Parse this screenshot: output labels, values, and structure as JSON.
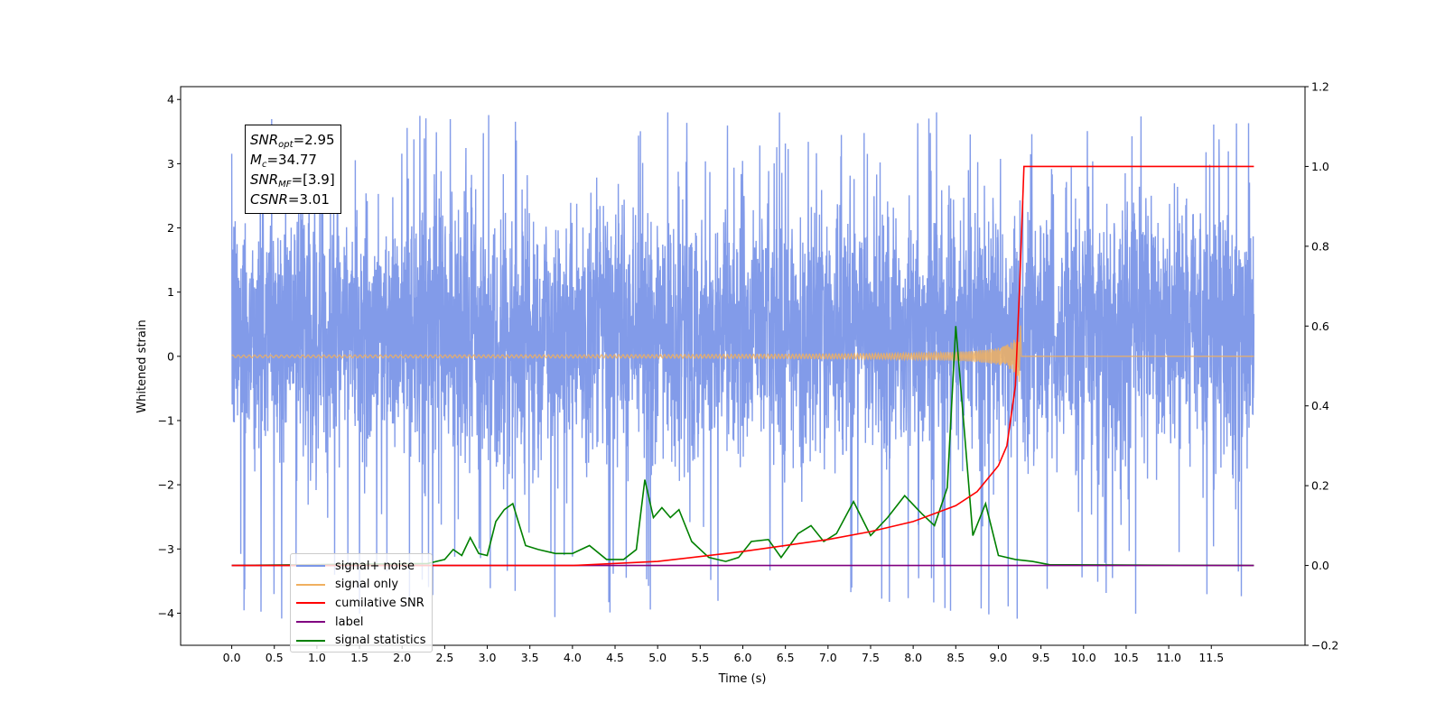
{
  "chart_data": {
    "type": "line",
    "xlabel": "Time (s)",
    "ylabel": "Whitened strain",
    "xlim": [
      -0.6,
      12.6
    ],
    "ylim_left": [
      -4.5,
      4.2
    ],
    "ylim_right": [
      -0.2,
      1.2
    ],
    "x_ticks": [
      "0.0",
      "0.5",
      "1.0",
      "1.5",
      "2.0",
      "2.5",
      "3.0",
      "3.5",
      "4.0",
      "4.5",
      "5.0",
      "5.5",
      "6.0",
      "6.5",
      "7.0",
      "7.5",
      "8.0",
      "8.5",
      "9.0",
      "9.5",
      "10.0",
      "10.5",
      "11.0",
      "11.5"
    ],
    "y_ticks_left": [
      "−4",
      "−3",
      "−2",
      "−1",
      "0",
      "1",
      "2",
      "3",
      "4"
    ],
    "y_ticks_right": [
      "−0.2",
      "0.0",
      "0.2",
      "0.4",
      "0.6",
      "0.8",
      "1.0",
      "1.2"
    ],
    "annotation": {
      "snr_opt": "=2.95",
      "mc": "=34.77",
      "snr_mf": "=[3.9]",
      "csnr": "=3.01"
    },
    "series": [
      {
        "name": "signal+ noise",
        "color": "#7b96e8",
        "axis": "left",
        "x_range": [
          0,
          12.0
        ],
        "envelope": [
          -1.5,
          2.3
        ],
        "spikes": [
          -4.1,
          3.8
        ]
      },
      {
        "name": "signal only",
        "color": "#f0b060",
        "axis": "left",
        "merger_time": 9.27,
        "peak_amplitude": 0.8
      },
      {
        "name": "cumilative SNR",
        "color": "#ff0000",
        "axis": "right",
        "x": [
          0,
          4.0,
          5.0,
          6.0,
          7.0,
          7.5,
          8.0,
          8.5,
          8.75,
          9.0,
          9.1,
          9.2,
          9.25,
          9.3,
          12.0
        ],
        "values": [
          0,
          0,
          0.01,
          0.035,
          0.065,
          0.085,
          0.11,
          0.15,
          0.185,
          0.25,
          0.3,
          0.45,
          0.7,
          1.0,
          1.0
        ]
      },
      {
        "name": "label",
        "color": "#800080",
        "axis": "right",
        "x": [
          0,
          12.0
        ],
        "values": [
          0,
          0
        ]
      },
      {
        "name": "signal statistics",
        "color": "#008000",
        "axis": "right",
        "x": [
          0,
          2.3,
          2.5,
          2.6,
          2.7,
          2.8,
          2.9,
          3.0,
          3.1,
          3.2,
          3.3,
          3.45,
          3.6,
          3.8,
          4.0,
          4.2,
          4.4,
          4.6,
          4.75,
          4.85,
          4.95,
          5.05,
          5.15,
          5.25,
          5.4,
          5.6,
          5.8,
          5.95,
          6.1,
          6.3,
          6.45,
          6.65,
          6.8,
          6.95,
          7.1,
          7.3,
          7.5,
          7.7,
          7.9,
          8.1,
          8.25,
          8.4,
          8.5,
          8.6,
          8.7,
          8.85,
          9.0,
          9.2,
          9.4,
          9.6,
          12.0
        ],
        "values": [
          0,
          0.005,
          0.015,
          0.04,
          0.025,
          0.07,
          0.03,
          0.025,
          0.11,
          0.14,
          0.155,
          0.05,
          0.04,
          0.03,
          0.03,
          0.05,
          0.015,
          0.015,
          0.04,
          0.215,
          0.12,
          0.145,
          0.12,
          0.14,
          0.06,
          0.02,
          0.01,
          0.02,
          0.06,
          0.065,
          0.02,
          0.08,
          0.1,
          0.06,
          0.08,
          0.16,
          0.075,
          0.12,
          0.175,
          0.13,
          0.1,
          0.195,
          0.6,
          0.34,
          0.075,
          0.155,
          0.025,
          0.015,
          0.01,
          0.002,
          0
        ]
      }
    ],
    "legend_position": "lower-left"
  }
}
